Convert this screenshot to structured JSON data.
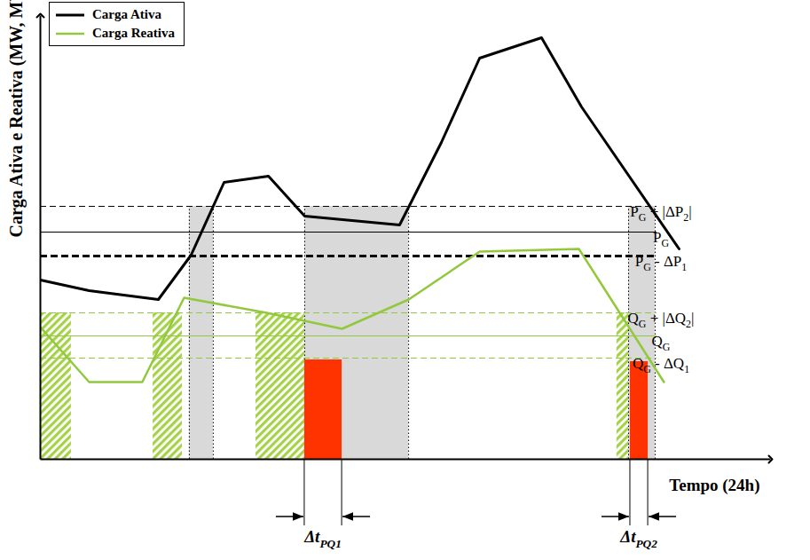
{
  "chart_data": {
    "type": "line",
    "x_label": "Tempo (24h)",
    "y_label": "Carga Ativa e Reativa (MW, MVAr)",
    "xlim": [
      0,
      25
    ],
    "ylim": [
      0,
      100
    ],
    "xticks": [],
    "yticks": [],
    "tick_labels": false,
    "grid": false,
    "legend": "top-left",
    "series": [
      {
        "name": "Carga Ativa",
        "color": "#000000",
        "x": [
          0,
          1.67,
          4.04,
          5.16,
          6.29,
          7.81,
          9.05,
          12.3,
          13.73,
          15.04,
          17.16,
          18.53,
          21.87
        ],
        "values": [
          40.4,
          38,
          36,
          46,
          62.4,
          63.8,
          54.8,
          52.8,
          71.4,
          90.4,
          95,
          79.4,
          47.4
        ]
      },
      {
        "name": "Carga Reativa",
        "color": "#92c83e",
        "x": [
          0,
          1.67,
          3.49,
          4.92,
          7.75,
          10.33,
          12.61,
          15.04,
          18.44,
          21.35
        ],
        "values": [
          29.8,
          17.4,
          17.4,
          36.4,
          33,
          29.4,
          36,
          46.8,
          47.4,
          17.4
        ]
      }
    ],
    "reference_lines": [
      {
        "value": 57,
        "color": "#000000",
        "line_style": "dashed",
        "label": [
          {
            "text": "P"
          },
          {
            "sub": "G"
          },
          {
            "text": " + |ΔP"
          },
          {
            "sub": "2"
          },
          {
            "text": "|"
          }
        ]
      },
      {
        "value": 51.2,
        "color": "#000000",
        "line_style": "solid",
        "label": [
          {
            "text": "P"
          },
          {
            "sub": "G"
          }
        ]
      },
      {
        "value": 45.8,
        "color": "#000000",
        "line_style": "heavy-dashed",
        "label": [
          {
            "text": "P"
          },
          {
            "sub": "G"
          },
          {
            "text": " - ΔP"
          },
          {
            "sub": "1"
          }
        ]
      },
      {
        "value": 33,
        "color": "#92c83e",
        "line_style": "dashed",
        "label": [
          {
            "text": "Q"
          },
          {
            "sub": "G"
          },
          {
            "text": " + |ΔQ"
          },
          {
            "sub": "2"
          },
          {
            "text": "|"
          }
        ]
      },
      {
        "value": 27.8,
        "color": "#92c83e",
        "line_style": "solid",
        "label": [
          {
            "text": "Q"
          },
          {
            "sub": "G"
          }
        ]
      },
      {
        "value": 22.8,
        "color": "#92c83e",
        "line_style": "dashed",
        "label": [
          {
            "text": "Q"
          },
          {
            "sub": "G"
          },
          {
            "text": " - ΔQ"
          },
          {
            "sub": "1"
          }
        ]
      }
    ],
    "hatched_regions": {
      "color": "#a6d24a",
      "regions": [
        {
          "x0": 0,
          "x1": 1.06,
          "y0": 0,
          "y1": 33
        },
        {
          "x0": 3.86,
          "x1": 4.86,
          "y0": 0,
          "y1": 33
        },
        {
          "x0": 7.38,
          "x1": 9.05,
          "y0": 0,
          "y1": 33
        },
        {
          "x0": 19.74,
          "x1": 20.5,
          "y0": 0,
          "y1": 33
        }
      ]
    },
    "shaded_regions": {
      "color": "#d9d9d9",
      "regions": [
        {
          "x0": 5.1,
          "x1": 5.92,
          "y0": 0,
          "y1": 57
        },
        {
          "x0": 9.05,
          "x1": 12.61,
          "y0": 0,
          "y1": 57
        },
        {
          "x0": 20.14,
          "x1": 21.05,
          "y0": 0,
          "y1": 57
        }
      ]
    },
    "highlight_regions": {
      "color": "#ff3300",
      "regions": [
        {
          "x0": 9.05,
          "x1": 10.33,
          "y0": 0,
          "y1": 22.4,
          "label": [
            {
              "text": "Δt"
            },
            {
              "sub": "PQ1"
            }
          ]
        },
        {
          "x0": 20.2,
          "x1": 20.81,
          "y0": 0,
          "y1": 22,
          "label": [
            {
              "text": "Δt"
            },
            {
              "sub": "PQ2"
            }
          ]
        }
      ]
    }
  }
}
